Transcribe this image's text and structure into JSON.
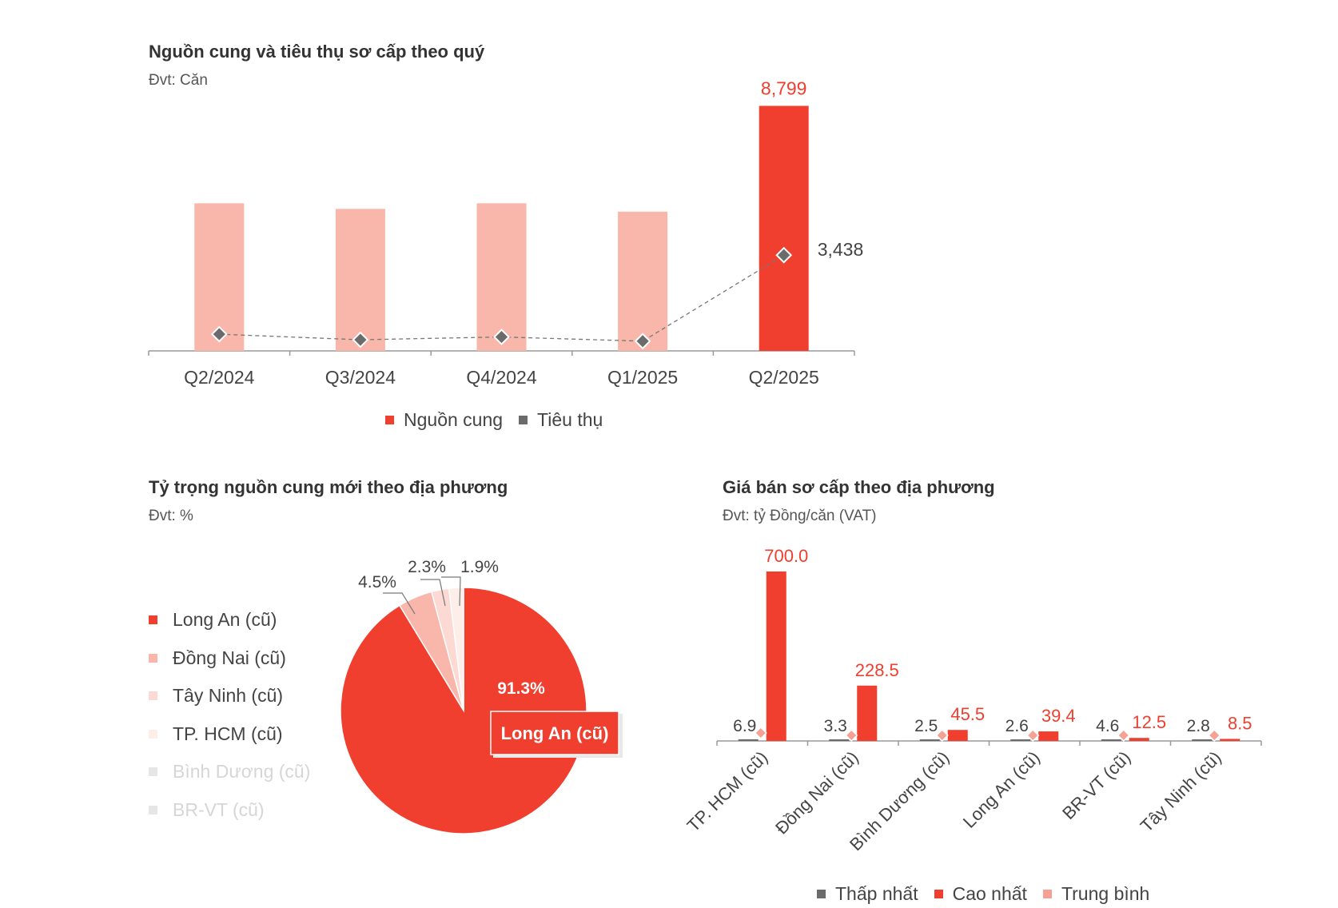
{
  "chart_data": [
    {
      "type": "bar",
      "title": "Nguồn cung và tiêu thụ sơ cấp theo quý",
      "subtitle": "Đvt: Căn",
      "categories": [
        "Q2/2024",
        "Q3/2024",
        "Q4/2024",
        "Q1/2025",
        "Q2/2025"
      ],
      "series": [
        {
          "name": "Nguồn cung",
          "kind": "bar",
          "values": [
            5300,
            5100,
            5300,
            5000,
            8799
          ],
          "labels": [
            "",
            "",
            "",
            "",
            "8,799"
          ],
          "color": "#f03e2f",
          "muted_color": "#f9b6aa"
        },
        {
          "name": "Tiêu thụ",
          "kind": "line",
          "values": [
            600,
            400,
            500,
            350,
            3438
          ],
          "labels": [
            "",
            "",
            "",
            "",
            "3,438"
          ],
          "color": "#6b6b6b"
        }
      ],
      "ylim": [
        0,
        9300
      ],
      "legend": "bottom"
    },
    {
      "type": "pie",
      "title": "Tỷ trọng nguồn cung mới theo địa phương",
      "subtitle": "Đvt: %",
      "slices": [
        {
          "name": "Long An (cũ)",
          "value": 91.3,
          "label": "91.3%",
          "color": "#f03e2f"
        },
        {
          "name": "Đồng Nai (cũ)",
          "value": 4.5,
          "label": "4.5%",
          "color": "#f9b6aa"
        },
        {
          "name": "Tây Ninh (cũ)",
          "value": 2.3,
          "label": "2.3%",
          "color": "#fcd9d2"
        },
        {
          "name": "TP. HCM (cũ)",
          "value": 1.9,
          "label": "1.9%",
          "color": "#fdeeea"
        },
        {
          "name": "Bình Dương (cũ)",
          "value": 0,
          "label": "",
          "color": "#e6e6e6"
        },
        {
          "name": "BR-VT (cũ)",
          "value": 0,
          "label": "",
          "color": "#e6e6e6"
        }
      ],
      "callout": "Long An (cũ)",
      "legend": "left"
    },
    {
      "type": "bar",
      "title": "Giá bán sơ cấp theo địa phương",
      "subtitle": "Đvt: tỷ Đồng/căn (VAT)",
      "categories": [
        "TP. HCM (cũ)",
        "Đồng Nai (cũ)",
        "Bình Dương (cũ)",
        "Long An (cũ)",
        "BR-VT (cũ)",
        "Tây Ninh (cũ)"
      ],
      "series": [
        {
          "name": "Thấp nhất",
          "kind": "bar",
          "values": [
            6.9,
            3.3,
            2.5,
            2.6,
            4.6,
            2.8
          ],
          "labels": [
            "6.9",
            "3.3",
            "2.5",
            "2.6",
            "4.6",
            "2.8"
          ],
          "color": "#6b6b6b"
        },
        {
          "name": "Cao nhất",
          "kind": "bar",
          "values": [
            700.0,
            228.5,
            45.5,
            39.4,
            12.5,
            8.5
          ],
          "labels": [
            "700.0",
            "228.5",
            "45.5",
            "39.4",
            "12.5",
            "8.5"
          ],
          "color": "#f03e2f"
        },
        {
          "name": "Trung bình",
          "kind": "marker",
          "values": [
            20,
            12,
            5,
            8,
            7,
            4
          ],
          "color": "#f4a293"
        }
      ],
      "ylim": [
        0,
        760
      ],
      "legend": "bottom"
    }
  ]
}
